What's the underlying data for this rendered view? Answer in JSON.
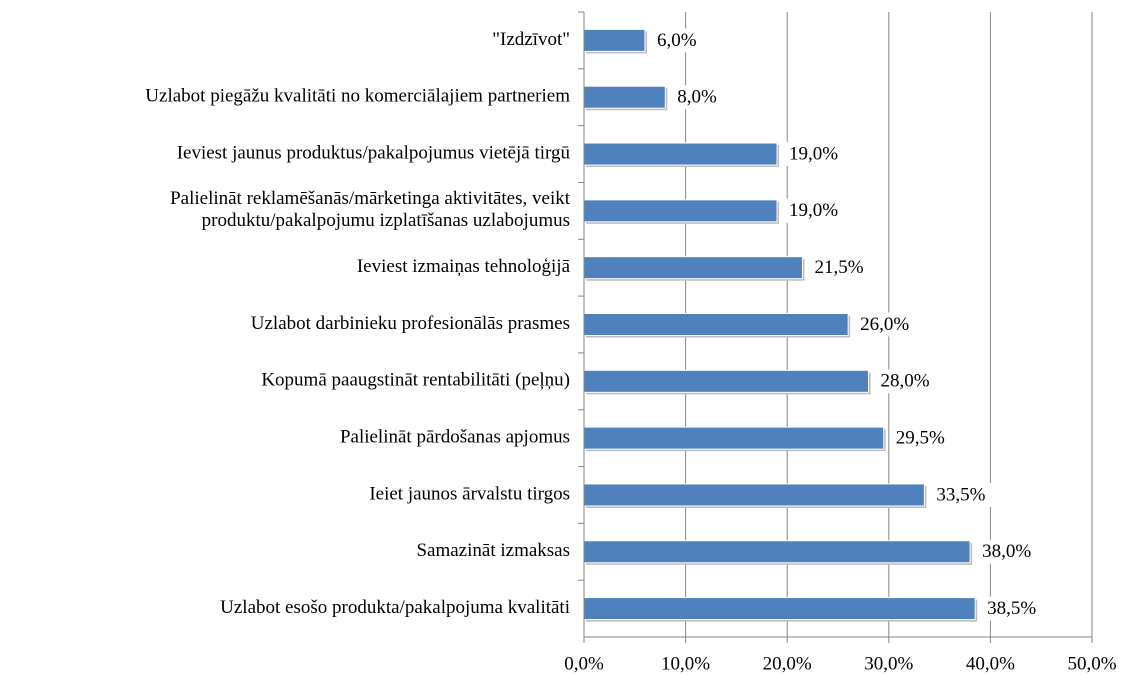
{
  "chart_data": {
    "type": "barh",
    "categories": [
      "\"Izdzīvot\"",
      "Uzlabot piegāžu kvalitāti no komerciālajiem partneriem",
      "Ieviest jaunus produktus/pakalpojumus vietējā tirgū",
      "Palielināt reklamēšanās/mārketinga aktivitātes, veikt\nproduktu/pakalpojumu izplatīšanas uzlabojumus",
      "Ieviest izmaiņas tehnoloģijā",
      "Uzlabot darbinieku profesionālās prasmes",
      "Kopumā paaugstināt rentabilitāti (peļņu)",
      "Palielināt pārdošanas apjomus",
      "Ieiet jaunos ārvalstu tirgos",
      "Samazināt izmaksas",
      "Uzlabot esošo produkta/pakalpojuma kvalitāti"
    ],
    "values": [
      6.0,
      8.0,
      19.0,
      19.0,
      21.5,
      26.0,
      28.0,
      29.5,
      33.5,
      38.0,
      38.5
    ],
    "value_labels": [
      "6,0%",
      "8,0%",
      "19,0%",
      "19,0%",
      "21,5%",
      "26,0%",
      "28,0%",
      "29,5%",
      "33,5%",
      "38,0%",
      "38,5%"
    ],
    "color": "#4f81bd",
    "xlim": [
      0,
      50
    ],
    "xticks": [
      {
        "value": 0,
        "label": "0,0%"
      },
      {
        "value": 10,
        "label": "10,0%"
      },
      {
        "value": 20,
        "label": "20,0%"
      },
      {
        "value": 30,
        "label": "30,0%"
      },
      {
        "value": 40,
        "label": "40,0%"
      },
      {
        "value": 50,
        "label": "50,0%"
      }
    ],
    "grid": true
  }
}
